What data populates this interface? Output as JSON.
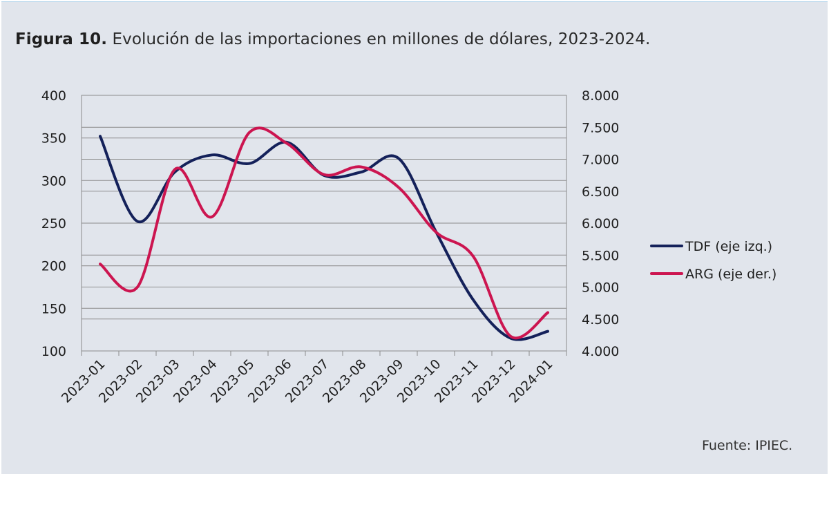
{
  "figure": {
    "title_bold": "Figura 10.",
    "title_rest": "Evolución de las importaciones en millones de dólares, 2023-2024.",
    "source": "Fuente: IPIEC."
  },
  "colors": {
    "background": "#e1e5ec",
    "tdf": "#14215a",
    "arg": "#cc1550",
    "grid": "#8c8c8c"
  },
  "chart_data": {
    "type": "line",
    "title": "Evolución de las importaciones en millones de dólares, 2023-2024.",
    "categories": [
      "2023-01",
      "2023-02",
      "2023-03",
      "2023-04",
      "2023-05",
      "2023-06",
      "2023-07",
      "2023-08",
      "2023-09",
      "2023-10",
      "2023-11",
      "2023-12",
      "2024-01"
    ],
    "y_left": {
      "ylim": [
        100,
        400
      ],
      "ticks": [
        100,
        150,
        200,
        250,
        300,
        350,
        400
      ],
      "tick_labels": [
        "100",
        "150",
        "200",
        "250",
        "300",
        "350",
        "400"
      ]
    },
    "y_right": {
      "ylim": [
        4000,
        8000
      ],
      "ticks": [
        4000,
        4500,
        5000,
        5500,
        6000,
        6500,
        7000,
        7500,
        8000
      ],
      "tick_labels": [
        "4.000",
        "4.500",
        "5.000",
        "5.500",
        "6.000",
        "6.500",
        "7.000",
        "7.500",
        "8.000"
      ]
    },
    "series": [
      {
        "name": "TDF (eje izq.)",
        "axis": "left",
        "color": "#14215a",
        "values": [
          352,
          252,
          310,
          330,
          320,
          345,
          306,
          310,
          326,
          240,
          160,
          115,
          123
        ]
      },
      {
        "name": "ARG (eje der.)",
        "axis": "right",
        "color": "#cc1550",
        "values": [
          5360,
          5000,
          6840,
          6100,
          7420,
          7250,
          6760,
          6880,
          6560,
          5860,
          5480,
          4230,
          4600
        ]
      }
    ],
    "grid": true,
    "legend_position": "right"
  }
}
